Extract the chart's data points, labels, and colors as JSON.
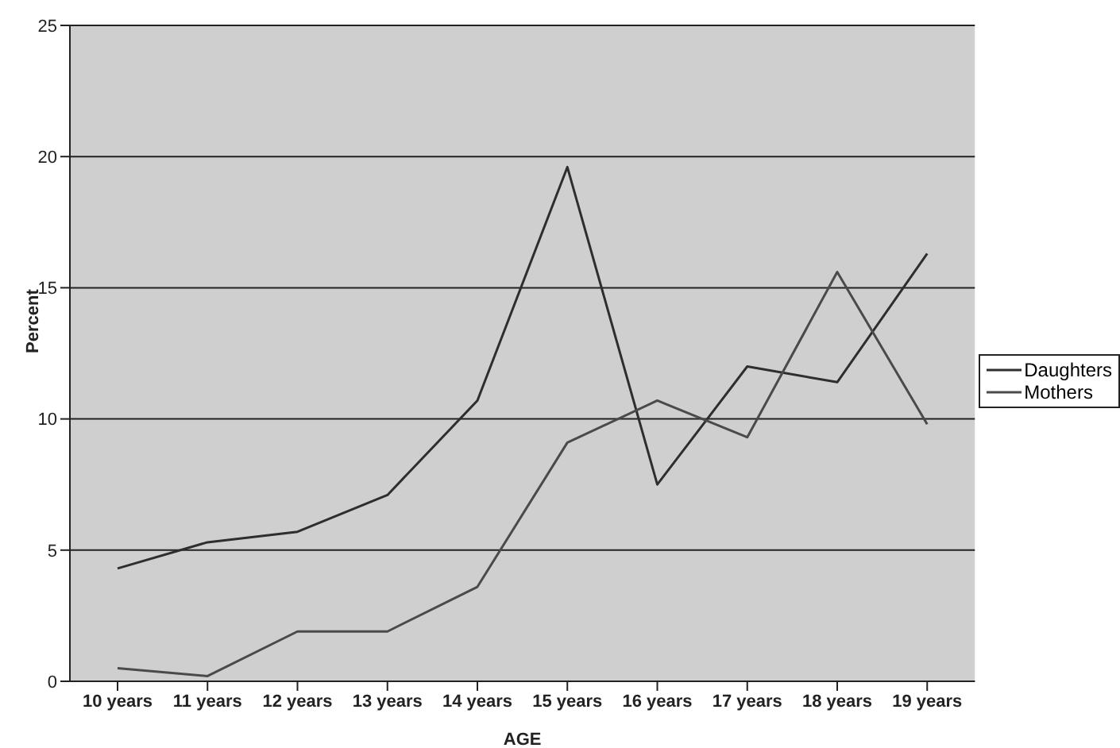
{
  "chart_data": {
    "type": "line",
    "xlabel": "AGE",
    "ylabel": "Percent",
    "categories": [
      "10 years",
      "11 years",
      "12 years",
      "13 years",
      "14 years",
      "15 years",
      "16 years",
      "17 years",
      "18 years",
      "19 years"
    ],
    "series": [
      {
        "name": "Daughters",
        "color": "#2e2e2e",
        "values": [
          4.3,
          5.3,
          5.7,
          7.1,
          10.7,
          19.6,
          7.5,
          12,
          11.4,
          16.3
        ]
      },
      {
        "name": "Mothers",
        "color": "#4a4a4a",
        "values": [
          0.5,
          0.2,
          1.9,
          1.9,
          3.6,
          9.1,
          10.7,
          9.3,
          15.6,
          9.8
        ]
      }
    ],
    "ylim": [
      0,
      25
    ],
    "yticks": [
      0,
      5,
      10,
      15,
      20,
      25
    ],
    "grid": "y",
    "legend": "right",
    "marker": "none",
    "line_style": "solid"
  }
}
